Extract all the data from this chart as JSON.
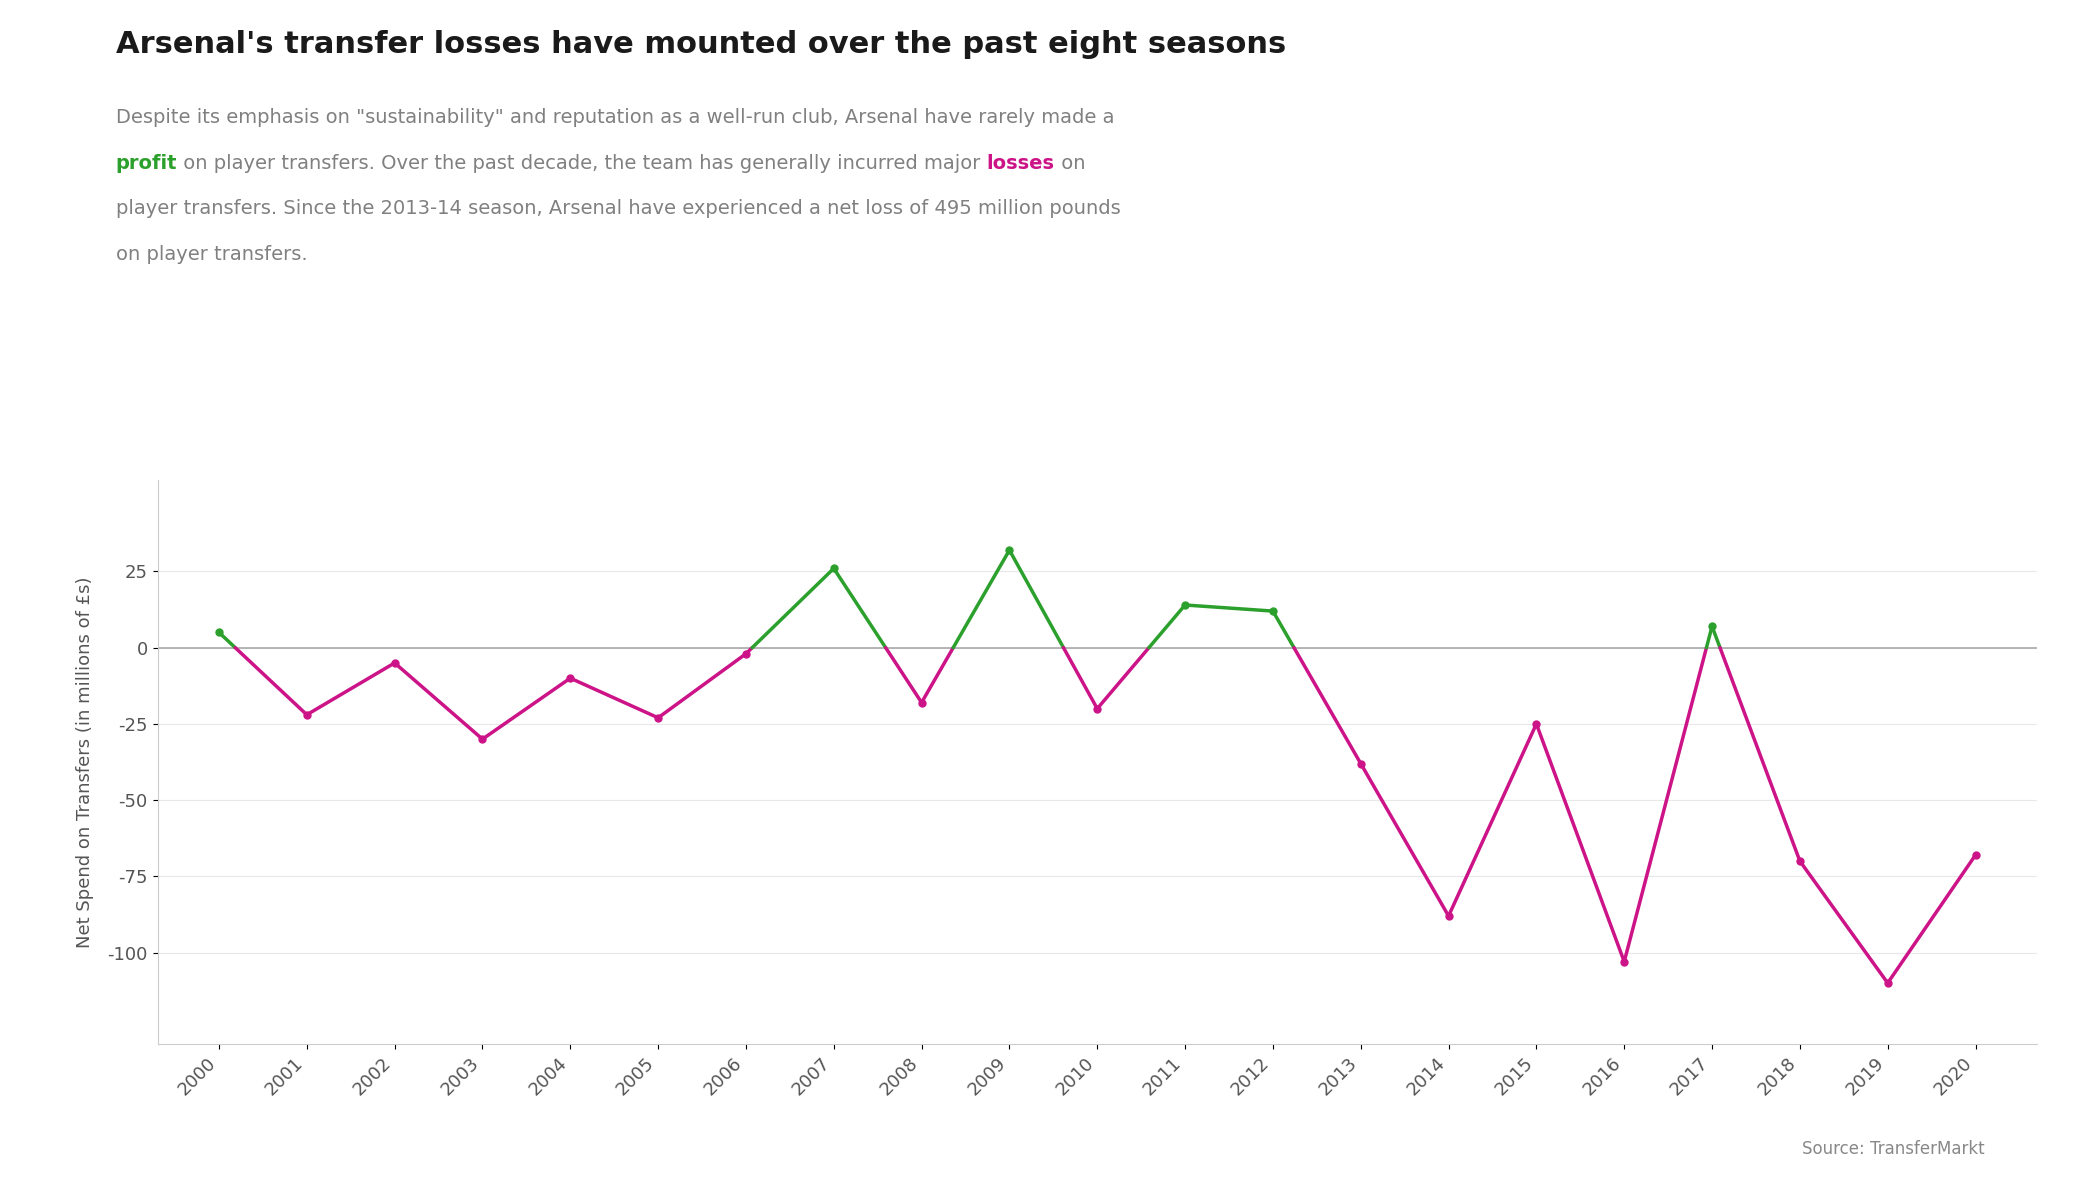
{
  "title": "Arsenal's transfer losses have mounted over the past eight seasons",
  "years": [
    2000,
    2001,
    2002,
    2003,
    2004,
    2005,
    2006,
    2007,
    2008,
    2009,
    2010,
    2011,
    2012,
    2013,
    2014,
    2015,
    2016,
    2017,
    2018,
    2019,
    2020
  ],
  "values": [
    5,
    -22,
    -5,
    -30,
    -10,
    -23,
    -2,
    26,
    -18,
    32,
    -20,
    14,
    12,
    -38,
    -88,
    -25,
    -103,
    7,
    -70,
    -110,
    -68
  ],
  "profit_color": "#2ca02c",
  "loss_color": "#cc1488",
  "ylabel": "Net Spend on Transfers (in millions of £s)",
  "ylim": [
    -130,
    55
  ],
  "yticks": [
    -100,
    -75,
    -50,
    -25,
    0,
    25
  ],
  "source_text": "Source: TransferMarkt",
  "background_color": "#ffffff",
  "spine_color": "#cccccc",
  "zero_line_color": "#aaaaaa",
  "title_fontsize": 22,
  "subtitle_fontsize": 14,
  "axis_label_fontsize": 13,
  "tick_fontsize": 13,
  "line_width": 2.5,
  "subtitle_line1": "Despite its emphasis on \"sustainability\" and reputation as a well-run club, Arsenal have rarely made a",
  "subtitle_line2_before_profit": "",
  "subtitle_line2_profit": "profit",
  "subtitle_line2_middle": " on player transfers. Over the past decade, the team has generally incurred major ",
  "subtitle_line2_losses": "losses",
  "subtitle_line2_after_losses": " on",
  "subtitle_line3": "player transfers. Since the 2013-14 season, Arsenal have experienced a net loss of 495 million pounds",
  "subtitle_line4": "on player transfers.",
  "gray_color": "#808080"
}
